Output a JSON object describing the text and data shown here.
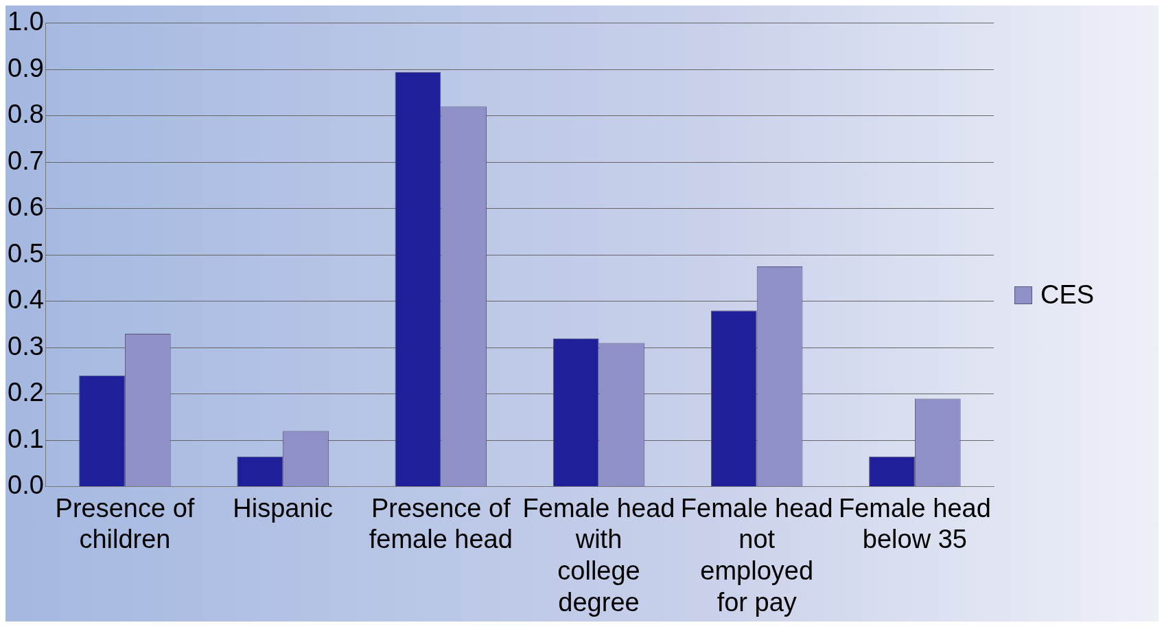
{
  "chart_data": {
    "type": "bar",
    "categories": [
      "Presence of children",
      "Hispanic",
      "Presence of female head",
      "Female head with college degree",
      "Female head not employed for pay",
      "Female head below 35"
    ],
    "series": [
      {
        "color": "#1f1f99",
        "values": [
          0.24,
          0.065,
          0.895,
          0.32,
          0.38,
          0.065
        ]
      },
      {
        "name": "CES",
        "color": "#9090c8",
        "values": [
          0.33,
          0.12,
          0.82,
          0.31,
          0.475,
          0.19
        ]
      }
    ],
    "ylim": [
      0,
      1
    ],
    "yticks": [
      {
        "value": 0,
        "label": "0.0"
      },
      {
        "value": 0.1,
        "label": "0.1"
      },
      {
        "value": 0.2,
        "label": "0.2"
      },
      {
        "value": 0.3,
        "label": "0.3"
      },
      {
        "value": 0.4,
        "label": "0.4"
      },
      {
        "value": 0.5,
        "label": "0.5"
      },
      {
        "value": 0.6,
        "label": "0.6"
      },
      {
        "value": 0.7,
        "label": "0.7"
      },
      {
        "value": 0.8,
        "label": "0.8"
      },
      {
        "value": 0.9,
        "label": "0.9"
      },
      {
        "value": 1,
        "label": "1.0"
      }
    ],
    "grid": "y",
    "legend": "right"
  }
}
